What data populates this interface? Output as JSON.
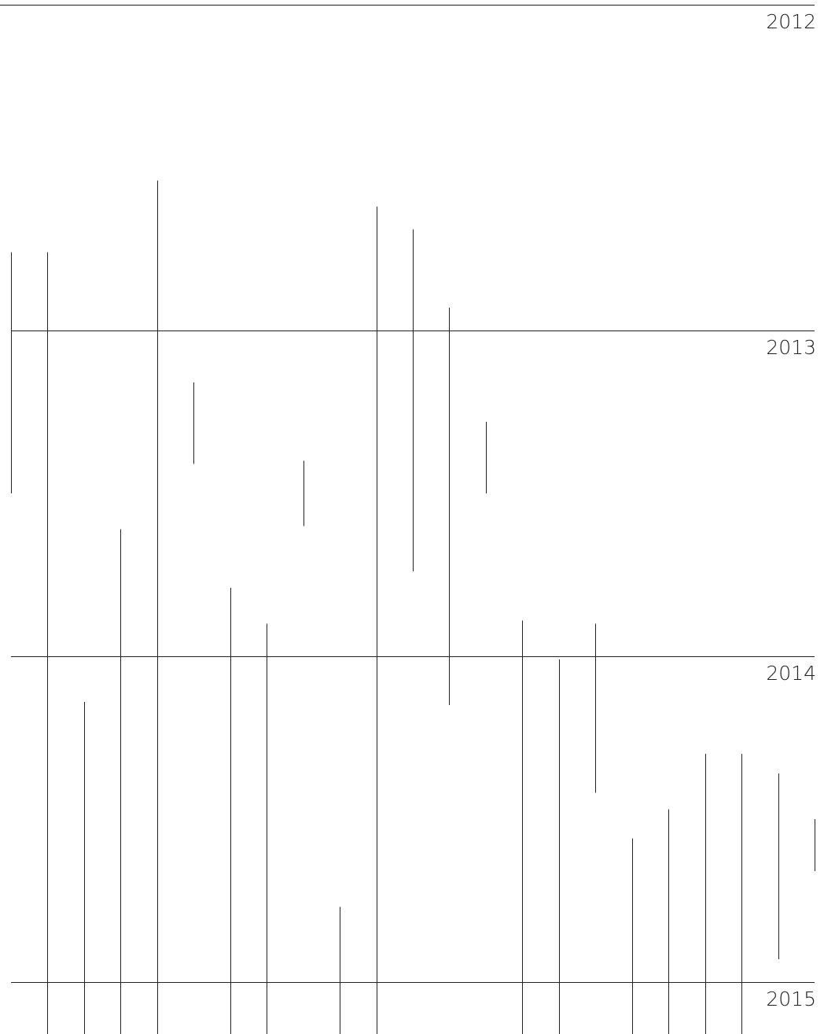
{
  "chart_data": {
    "type": "timeline",
    "ylim": [
      2012,
      2015.16
    ],
    "yticks": [
      2012,
      2013,
      2014,
      2015
    ],
    "grid": true,
    "color": "#222222",
    "bars": [
      {
        "start": 2012.76,
        "end": 2013.5
      },
      {
        "start": 2012.76,
        "end": 2015.16
      },
      {
        "start": 2014.14,
        "end": 2015.16
      },
      {
        "start": 2013.61,
        "end": 2015.16
      },
      {
        "start": 2012.54,
        "end": 2015.16
      },
      {
        "start": 2013.16,
        "end": 2013.41
      },
      {
        "start": 2013.79,
        "end": 2015.16
      },
      {
        "start": 2013.9,
        "end": 2015.16
      },
      {
        "start": 2013.4,
        "end": 2013.6
      },
      {
        "start": 2014.77,
        "end": 2015.16
      },
      {
        "start": 2012.62,
        "end": 2015.16
      },
      {
        "start": 2012.69,
        "end": 2013.74
      },
      {
        "start": 2012.93,
        "end": 2014.15
      },
      {
        "start": 2013.28,
        "end": 2013.5
      },
      {
        "start": 2013.89,
        "end": 2015.16
      },
      {
        "start": 2014.01,
        "end": 2015.16
      },
      {
        "start": 2013.9,
        "end": 2014.42
      },
      {
        "start": 2014.56,
        "end": 2015.16
      },
      {
        "start": 2014.47,
        "end": 2015.16
      },
      {
        "start": 2014.3,
        "end": 2015.16
      },
      {
        "start": 2014.3,
        "end": 2015.16
      },
      {
        "start": 2014.36,
        "end": 2014.93
      },
      {
        "start": 2014.5,
        "end": 2014.66
      }
    ]
  }
}
